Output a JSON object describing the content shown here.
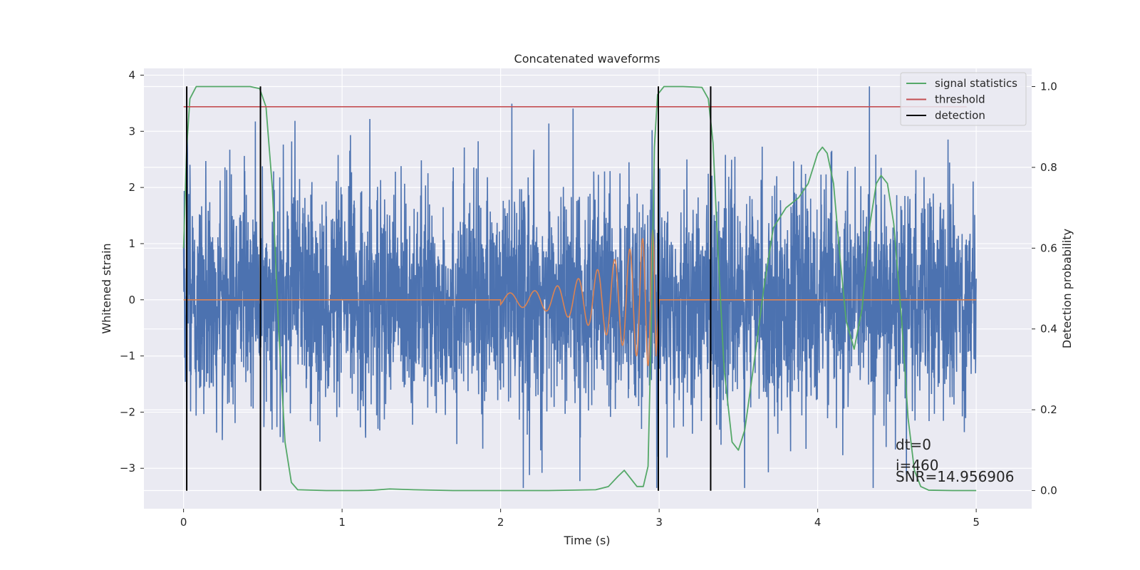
{
  "chart_data": {
    "type": "line",
    "title": "Concatenated waveforms",
    "xlabel": "Time (s)",
    "ylabel": "Whitened strain",
    "y2label": "Detection probability",
    "xlim": [
      -0.25,
      5.35
    ],
    "ylim": [
      -3.72,
      4.12
    ],
    "y2lim": [
      -0.045,
      1.045
    ],
    "x_ticks": [
      0,
      1,
      2,
      3,
      4,
      5
    ],
    "y_ticks": [
      -3,
      -2,
      -1,
      0,
      1,
      2,
      3,
      4
    ],
    "y2_ticks": [
      0.0,
      0.2,
      0.4,
      0.6,
      0.8,
      1.0
    ],
    "grid": true,
    "legend_position": "top-right",
    "legend": [
      {
        "label": "signal statistics",
        "color": "#55a868"
      },
      {
        "label": "threshold",
        "color": "#c44e52"
      },
      {
        "label": "detection",
        "color": "#000000"
      }
    ],
    "series": [
      {
        "kind": "strain-noise",
        "color": "#4c72b0",
        "x_range": [
          0,
          5
        ],
        "noise_std": 0.95
      },
      {
        "kind": "chirp-template",
        "color": "#dd8452",
        "x_range": [
          0,
          5
        ],
        "chirp_start": 2.0,
        "chirp_end": 2.98,
        "peak_amplitude": 1.3
      },
      {
        "name": "signal statistics",
        "color": "#55a868",
        "axis": "right",
        "points": [
          [
            0.0,
            0.6
          ],
          [
            0.02,
            0.85
          ],
          [
            0.04,
            0.97
          ],
          [
            0.08,
            1.0
          ],
          [
            0.2,
            1.0
          ],
          [
            0.3,
            1.0
          ],
          [
            0.42,
            1.0
          ],
          [
            0.48,
            0.995
          ],
          [
            0.52,
            0.95
          ],
          [
            0.56,
            0.75
          ],
          [
            0.6,
            0.4
          ],
          [
            0.64,
            0.12
          ],
          [
            0.68,
            0.02
          ],
          [
            0.72,
            0.002
          ],
          [
            0.9,
            0.0
          ],
          [
            1.1,
            0.0
          ],
          [
            1.2,
            0.001
          ],
          [
            1.3,
            0.004
          ],
          [
            1.45,
            0.002
          ],
          [
            1.7,
            0.0
          ],
          [
            2.0,
            0.0
          ],
          [
            2.3,
            0.0
          ],
          [
            2.6,
            0.002
          ],
          [
            2.68,
            0.01
          ],
          [
            2.74,
            0.035
          ],
          [
            2.78,
            0.05
          ],
          [
            2.82,
            0.03
          ],
          [
            2.86,
            0.01
          ],
          [
            2.9,
            0.01
          ],
          [
            2.93,
            0.06
          ],
          [
            2.95,
            0.4
          ],
          [
            2.97,
            0.85
          ],
          [
            2.99,
            0.98
          ],
          [
            3.03,
            1.0
          ],
          [
            3.15,
            1.0
          ],
          [
            3.27,
            0.998
          ],
          [
            3.31,
            0.97
          ],
          [
            3.34,
            0.86
          ],
          [
            3.37,
            0.6
          ],
          [
            3.41,
            0.3
          ],
          [
            3.46,
            0.12
          ],
          [
            3.5,
            0.1
          ],
          [
            3.54,
            0.15
          ],
          [
            3.6,
            0.32
          ],
          [
            3.66,
            0.5
          ],
          [
            3.72,
            0.65
          ],
          [
            3.8,
            0.7
          ],
          [
            3.88,
            0.725
          ],
          [
            3.94,
            0.76
          ],
          [
            4.0,
            0.835
          ],
          [
            4.03,
            0.85
          ],
          [
            4.06,
            0.835
          ],
          [
            4.1,
            0.76
          ],
          [
            4.14,
            0.58
          ],
          [
            4.18,
            0.42
          ],
          [
            4.23,
            0.35
          ],
          [
            4.28,
            0.45
          ],
          [
            4.33,
            0.66
          ],
          [
            4.37,
            0.76
          ],
          [
            4.4,
            0.78
          ],
          [
            4.44,
            0.76
          ],
          [
            4.48,
            0.66
          ],
          [
            4.53,
            0.42
          ],
          [
            4.57,
            0.18
          ],
          [
            4.61,
            0.05
          ],
          [
            4.65,
            0.01
          ],
          [
            4.7,
            0.001
          ],
          [
            4.85,
            0.0
          ],
          [
            5.0,
            0.0
          ]
        ]
      },
      {
        "name": "threshold",
        "color": "#c44e52",
        "axis": "right",
        "x_range": [
          0,
          4.94
        ],
        "value": 0.95
      },
      {
        "name": "detection",
        "color": "#000000",
        "type": "vlines",
        "x": [
          0.02,
          0.485,
          2.995,
          3.325
        ],
        "y_range": [
          -3.4,
          3.8
        ]
      }
    ],
    "annotations": [
      "dt=0",
      "i=460",
      "SNR=14.956906"
    ]
  }
}
